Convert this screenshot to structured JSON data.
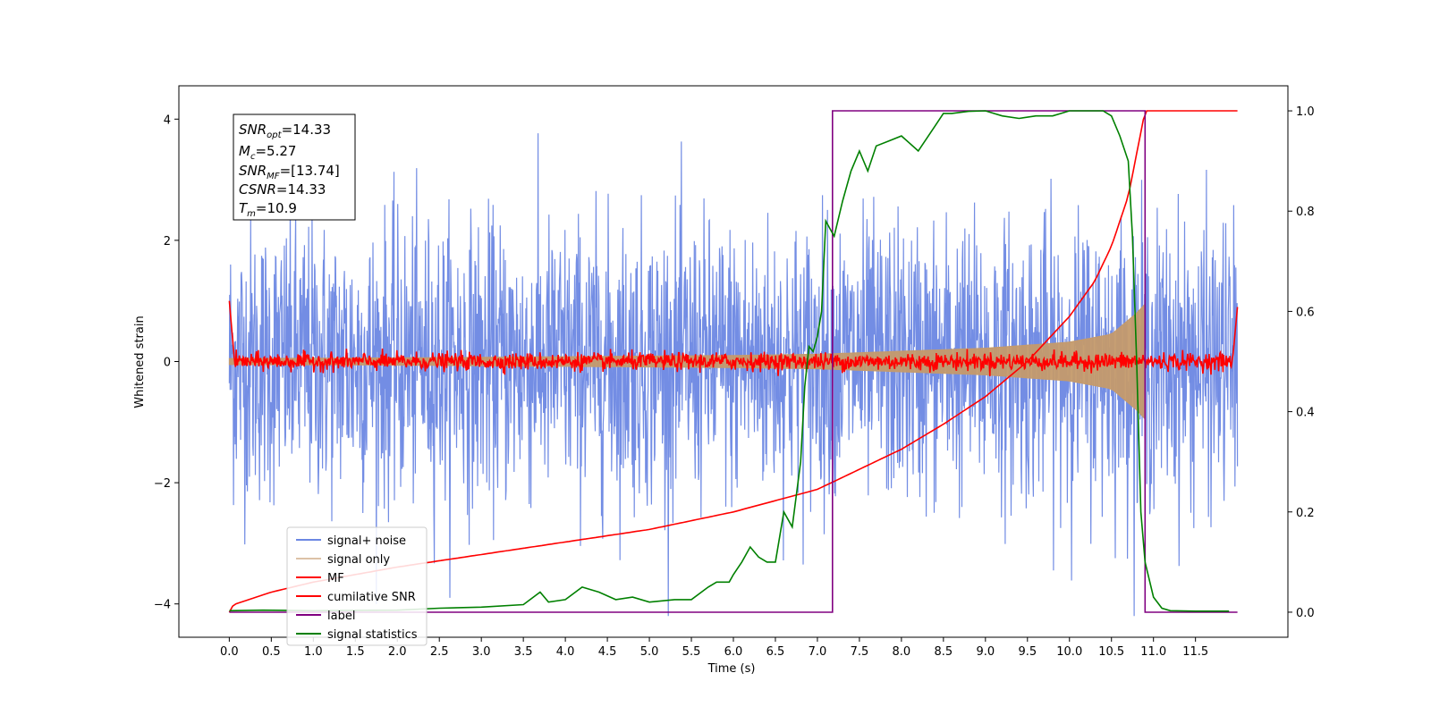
{
  "chart_data": {
    "type": "line",
    "xlabel": "Time (s)",
    "ylabel_left": "Whitened strain",
    "ylabel_right": "",
    "xlim": [
      -0.6,
      12.6
    ],
    "ylim_left": [
      -4.55,
      4.55
    ],
    "ylim_right": [
      -0.05,
      1.05
    ],
    "x_ticks": [
      "0.0",
      "0.5",
      "1.0",
      "1.5",
      "2.0",
      "2.5",
      "3.0",
      "3.5",
      "4.0",
      "4.5",
      "5.0",
      "5.5",
      "6.0",
      "6.5",
      "7.0",
      "7.5",
      "8.0",
      "8.5",
      "9.0",
      "9.5",
      "10.0",
      "10.5",
      "11.0",
      "11.5"
    ],
    "y_ticks_left": [
      4,
      2,
      0,
      -2,
      -4
    ],
    "y_ticks_right": [
      "1.0",
      "0.8",
      "0.6",
      "0.4",
      "0.2",
      "0.0"
    ],
    "grid": false,
    "legend_position": "lower-left",
    "info_box": {
      "snr_opt_label": "SNR",
      "snr_opt_sub": "opt",
      "snr_opt_value": "=14.33",
      "mc_label": "M",
      "mc_sub": "c",
      "mc_value": "=5.27",
      "snr_mf_label": "SNR",
      "snr_mf_sub": "MF",
      "snr_mf_value": "=[13.74]",
      "csnr_label": "CSNR",
      "csnr_value": "=14.33",
      "tm_label": "T",
      "tm_sub": "m",
      "tm_value": "=10.9"
    },
    "series": [
      {
        "name": "signal+ noise",
        "color": "#6b87e3",
        "axis": "left",
        "description_values": {
          "x_range": [
            0.0,
            12.0
          ],
          "noise_sigma": 1.0,
          "y_min": -4.2,
          "y_max": 4.2
        }
      },
      {
        "name": "signal only",
        "color": "#c49a6c",
        "axis": "left",
        "envelope": {
          "x": [
            0.0,
            2.0,
            4.0,
            6.0,
            7.0,
            8.0,
            9.0,
            10.0,
            10.5,
            10.8,
            10.9
          ],
          "amplitude": [
            0.05,
            0.06,
            0.08,
            0.1,
            0.12,
            0.17,
            0.22,
            0.32,
            0.45,
            0.8,
            0.95
          ]
        }
      },
      {
        "name": "MF",
        "color": "#ff0000",
        "axis": "left",
        "description_values": {
          "x_range": [
            0.0,
            12.0
          ],
          "baseline": 0.0,
          "spread": 0.12
        }
      },
      {
        "name": "cumilative SNR",
        "color": "#ff0000",
        "axis": "right",
        "x": [
          0.0,
          0.05,
          0.5,
          1.0,
          2.0,
          3.0,
          4.0,
          5.0,
          6.0,
          7.0,
          8.0,
          8.5,
          9.0,
          9.5,
          10.0,
          10.3,
          10.5,
          10.7,
          10.9,
          11.0,
          12.0
        ],
        "values": [
          0.0,
          0.015,
          0.04,
          0.06,
          0.09,
          0.115,
          0.14,
          0.165,
          0.2,
          0.245,
          0.325,
          0.375,
          0.43,
          0.5,
          0.59,
          0.66,
          0.73,
          0.83,
          1.0,
          1.0,
          1.0
        ]
      },
      {
        "name": "label",
        "color": "#800080",
        "axis": "right",
        "x": [
          0.0,
          7.18,
          7.18,
          10.9,
          10.9,
          12.0
        ],
        "values": [
          0.0,
          0.0,
          1.0,
          1.0,
          0.0,
          0.0
        ]
      },
      {
        "name": "signal statistics",
        "color": "#008000",
        "axis": "right",
        "x": [
          0.0,
          0.4,
          1.0,
          2.0,
          2.5,
          3.0,
          3.5,
          3.7,
          3.8,
          4.0,
          4.2,
          4.4,
          4.6,
          4.8,
          5.0,
          5.3,
          5.5,
          5.7,
          5.8,
          5.95,
          6.0,
          6.1,
          6.2,
          6.3,
          6.4,
          6.5,
          6.6,
          6.7,
          6.8,
          6.85,
          6.9,
          6.95,
          7.0,
          7.05,
          7.1,
          7.2,
          7.3,
          7.4,
          7.5,
          7.6,
          7.7,
          7.85,
          8.0,
          8.2,
          8.4,
          8.5,
          8.6,
          8.8,
          9.0,
          9.2,
          9.4,
          9.6,
          9.8,
          10.0,
          10.4,
          10.5,
          10.6,
          10.7,
          10.75,
          10.8,
          10.85,
          10.9,
          11.0,
          11.1,
          11.2,
          11.5,
          11.9
        ],
        "values": [
          0.003,
          0.004,
          0.003,
          0.004,
          0.008,
          0.01,
          0.015,
          0.04,
          0.02,
          0.025,
          0.05,
          0.04,
          0.025,
          0.03,
          0.02,
          0.025,
          0.025,
          0.05,
          0.06,
          0.06,
          0.075,
          0.1,
          0.13,
          0.11,
          0.1,
          0.1,
          0.2,
          0.17,
          0.3,
          0.45,
          0.53,
          0.52,
          0.55,
          0.6,
          0.78,
          0.75,
          0.82,
          0.88,
          0.92,
          0.88,
          0.93,
          0.94,
          0.95,
          0.92,
          0.97,
          0.995,
          0.995,
          0.999,
          1.0,
          0.99,
          0.985,
          0.99,
          0.99,
          1.0,
          1.0,
          0.99,
          0.95,
          0.9,
          0.75,
          0.5,
          0.2,
          0.1,
          0.03,
          0.008,
          0.003,
          0.002,
          0.002
        ]
      }
    ]
  },
  "colors": {
    "signal_noise": "#6b87e3",
    "signal_only": "#c49a6c",
    "mf": "#ff0000",
    "label": "#800080",
    "statistics": "#008000"
  }
}
